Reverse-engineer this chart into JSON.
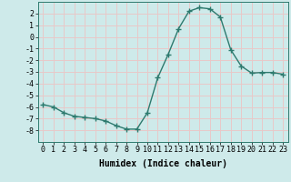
{
  "x": [
    0,
    1,
    2,
    3,
    4,
    5,
    6,
    7,
    8,
    9,
    10,
    11,
    12,
    13,
    14,
    15,
    16,
    17,
    18,
    19,
    20,
    21,
    22,
    23
  ],
  "y": [
    -5.8,
    -6.0,
    -6.5,
    -6.8,
    -6.9,
    -7.0,
    -7.2,
    -7.6,
    -7.9,
    -7.9,
    -6.5,
    -3.5,
    -1.5,
    0.7,
    2.2,
    2.5,
    2.4,
    1.7,
    -1.1,
    -2.5,
    -3.1,
    -3.05,
    -3.05,
    -3.2
  ],
  "xlabel": "Humidex (Indice chaleur)",
  "ylim": [
    -9,
    3
  ],
  "xlim": [
    -0.5,
    23.5
  ],
  "yticks": [
    2,
    1,
    0,
    -1,
    -2,
    -3,
    -4,
    -5,
    -6,
    -7,
    -8
  ],
  "xticks": [
    0,
    1,
    2,
    3,
    4,
    5,
    6,
    7,
    8,
    9,
    10,
    11,
    12,
    13,
    14,
    15,
    16,
    17,
    18,
    19,
    20,
    21,
    22,
    23
  ],
  "line_color": "#2d7a6e",
  "marker": "+",
  "marker_size": 4.0,
  "bg_color": "#ceeaea",
  "grid_color": "#e8c8c8",
  "xlabel_fontsize": 7,
  "tick_fontsize": 6,
  "line_width": 1.0
}
